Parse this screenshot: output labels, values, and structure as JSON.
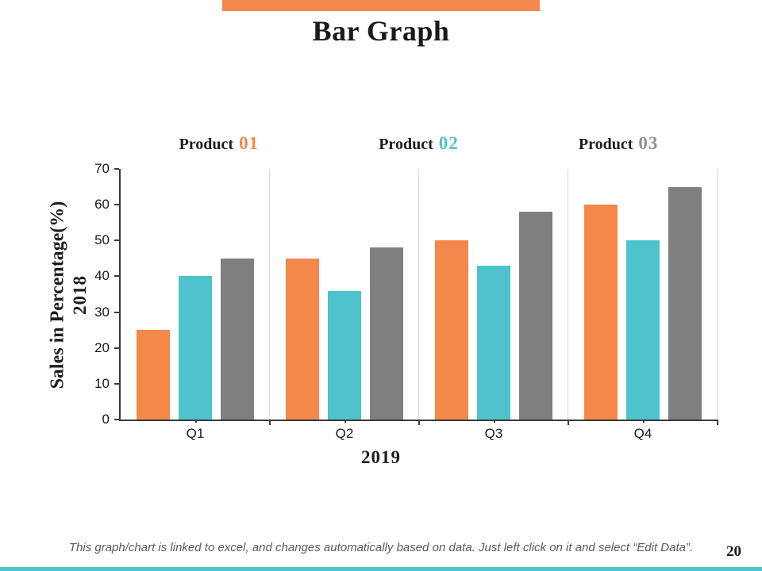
{
  "slide": {
    "title": "Bar Graph",
    "page_number": "20",
    "footer_note": "This graph/chart is linked to excel, and changes automatically based on data.  Just left click on it and select “Edit Data”.",
    "accent_colors": {
      "top_bar": "#F2884A",
      "bottom_bar": "#4EC3CB"
    }
  },
  "legend": {
    "items": [
      {
        "name": "Product",
        "number": "01",
        "color": "#F2884A"
      },
      {
        "name": "Product",
        "number": "02",
        "color": "#4EC3CB"
      },
      {
        "name": "Product",
        "number": "03",
        "color": "#919191"
      }
    ]
  },
  "chart_data": {
    "type": "bar",
    "categories": [
      "Q1",
      "Q2",
      "Q3",
      "Q4"
    ],
    "series": [
      {
        "name": "Product 01",
        "color": "#F2884A",
        "values": [
          25,
          45,
          50,
          60
        ]
      },
      {
        "name": "Product 02",
        "color": "#4EC3CB",
        "values": [
          40,
          36,
          43,
          50
        ]
      },
      {
        "name": "Product 03",
        "color": "#7F7F7F",
        "values": [
          45,
          48,
          58,
          65
        ]
      }
    ],
    "title": "Bar Graph",
    "xlabel": "2019",
    "ylabel": "Sales in Percentage(%)",
    "ylabel_year": "2018",
    "ylim": [
      0,
      70
    ],
    "yticks": [
      0,
      10,
      20,
      30,
      40,
      50,
      60,
      70
    ],
    "grid": "vertical-category-separators",
    "legend_position": "top"
  }
}
